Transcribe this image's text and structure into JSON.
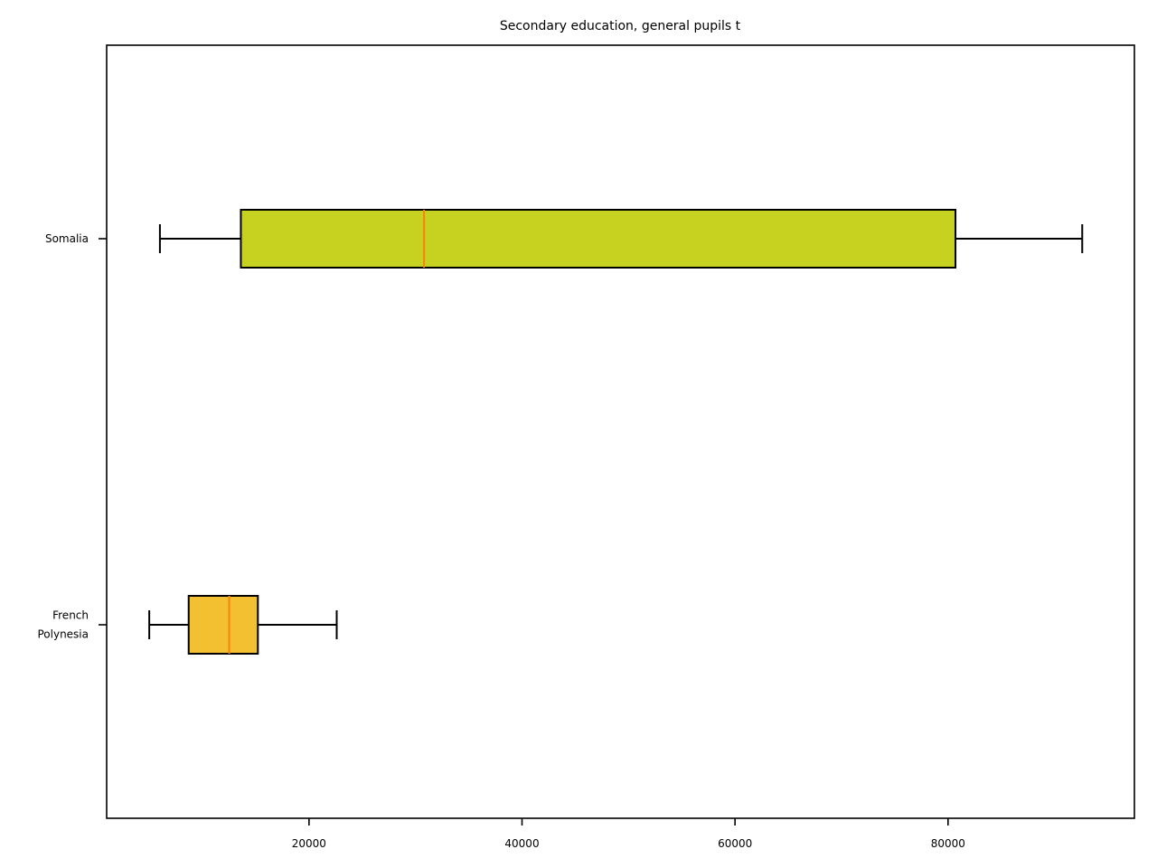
{
  "chart_data": {
    "type": "boxplot",
    "orientation": "horizontal",
    "title": "Secondary education, general pupils t",
    "xlabel": "",
    "ylabel": "",
    "xlim": [
      1000,
      97500
    ],
    "xticks": [
      20000,
      40000,
      60000,
      80000
    ],
    "xtick_labels": [
      "20000",
      "40000",
      "60000",
      "80000"
    ],
    "grid": false,
    "series": [
      {
        "name": "Somalia",
        "label_lines": [
          "Somalia"
        ],
        "color": "#c7d120",
        "median_color": "#ff7f0e",
        "whisker_low": 6000,
        "q1": 13600,
        "median": 30800,
        "q3": 80700,
        "whisker_high": 92600
      },
      {
        "name": "French Polynesia",
        "label_lines": [
          "French",
          "Polynesia"
        ],
        "color": "#f2c030",
        "median_color": "#ff7f0e",
        "whisker_low": 5000,
        "q1": 8700,
        "median": 12500,
        "q3": 15200,
        "whisker_high": 22600
      }
    ]
  }
}
